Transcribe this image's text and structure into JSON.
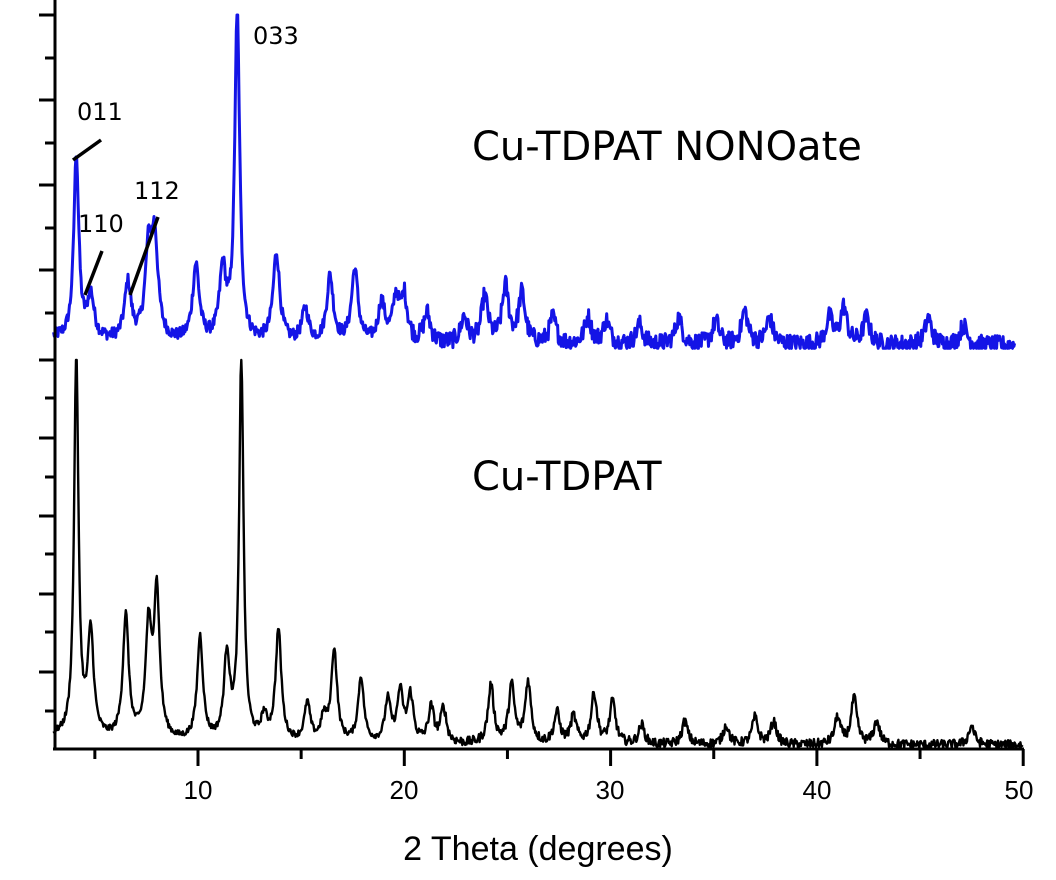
{
  "chart_data": {
    "type": "line",
    "title": "",
    "xlabel": "2 Theta (degrees)",
    "ylabel": "",
    "xlim": [
      3,
      50
    ],
    "x_ticks_major": [
      10,
      20,
      30,
      40,
      50
    ],
    "x_ticks_minor": [
      5,
      15,
      25,
      35,
      45
    ],
    "y_tick_labels": "none",
    "grid": false,
    "legend": "none (inline series labels)",
    "layout": "stacked (offset) powder XRD patterns, shared x-axis",
    "series": [
      {
        "name": "Cu-TDPAT NONOate",
        "color": "#1414e6",
        "position": "upper",
        "peaks": [
          {
            "two_theta": 4.1,
            "rel_intensity": 0.56,
            "hkl": "011"
          },
          {
            "two_theta": 4.8,
            "rel_intensity": 0.13,
            "hkl": "110"
          },
          {
            "two_theta": 6.6,
            "rel_intensity": 0.17,
            "hkl": "112"
          },
          {
            "two_theta": 7.6,
            "rel_intensity": 0.25
          },
          {
            "two_theta": 7.9,
            "rel_intensity": 0.29
          },
          {
            "two_theta": 9.9,
            "rel_intensity": 0.23
          },
          {
            "two_theta": 11.2,
            "rel_intensity": 0.21
          },
          {
            "two_theta": 11.9,
            "rel_intensity": 1.0,
            "hkl": "033"
          },
          {
            "two_theta": 13.8,
            "rel_intensity": 0.27
          },
          {
            "two_theta": 15.2,
            "rel_intensity": 0.1
          },
          {
            "two_theta": 16.4,
            "rel_intensity": 0.2
          },
          {
            "two_theta": 17.6,
            "rel_intensity": 0.22
          },
          {
            "two_theta": 18.9,
            "rel_intensity": 0.12
          },
          {
            "two_theta": 19.6,
            "rel_intensity": 0.13
          },
          {
            "two_theta": 20.0,
            "rel_intensity": 0.13
          },
          {
            "two_theta": 21.1,
            "rel_intensity": 0.09
          },
          {
            "two_theta": 22.9,
            "rel_intensity": 0.08
          },
          {
            "two_theta": 23.9,
            "rel_intensity": 0.14
          },
          {
            "two_theta": 24.9,
            "rel_intensity": 0.17
          },
          {
            "two_theta": 25.7,
            "rel_intensity": 0.15
          },
          {
            "two_theta": 27.2,
            "rel_intensity": 0.08
          },
          {
            "two_theta": 28.9,
            "rel_intensity": 0.08
          },
          {
            "two_theta": 29.8,
            "rel_intensity": 0.07
          },
          {
            "two_theta": 31.4,
            "rel_intensity": 0.06
          },
          {
            "two_theta": 33.3,
            "rel_intensity": 0.08
          },
          {
            "two_theta": 35.1,
            "rel_intensity": 0.07
          },
          {
            "two_theta": 36.5,
            "rel_intensity": 0.1
          },
          {
            "two_theta": 37.7,
            "rel_intensity": 0.08
          },
          {
            "two_theta": 40.6,
            "rel_intensity": 0.08
          },
          {
            "two_theta": 41.3,
            "rel_intensity": 0.11
          },
          {
            "two_theta": 42.4,
            "rel_intensity": 0.08
          },
          {
            "two_theta": 45.4,
            "rel_intensity": 0.08
          },
          {
            "two_theta": 47.1,
            "rel_intensity": 0.06
          }
        ]
      },
      {
        "name": "Cu-TDPAT",
        "color": "#000000",
        "position": "lower",
        "peaks": [
          {
            "two_theta": 4.1,
            "rel_intensity": 1.0
          },
          {
            "two_theta": 4.8,
            "rel_intensity": 0.27
          },
          {
            "two_theta": 6.5,
            "rel_intensity": 0.32
          },
          {
            "two_theta": 7.6,
            "rel_intensity": 0.28
          },
          {
            "two_theta": 8.0,
            "rel_intensity": 0.38
          },
          {
            "two_theta": 10.1,
            "rel_intensity": 0.27
          },
          {
            "two_theta": 11.4,
            "rel_intensity": 0.22
          },
          {
            "two_theta": 12.1,
            "rel_intensity": 1.0
          },
          {
            "two_theta": 13.2,
            "rel_intensity": 0.06
          },
          {
            "two_theta": 13.9,
            "rel_intensity": 0.29
          },
          {
            "two_theta": 15.3,
            "rel_intensity": 0.1
          },
          {
            "two_theta": 16.1,
            "rel_intensity": 0.06
          },
          {
            "two_theta": 16.6,
            "rel_intensity": 0.24
          },
          {
            "two_theta": 17.9,
            "rel_intensity": 0.17
          },
          {
            "two_theta": 19.2,
            "rel_intensity": 0.11
          },
          {
            "two_theta": 19.8,
            "rel_intensity": 0.13
          },
          {
            "two_theta": 20.3,
            "rel_intensity": 0.12
          },
          {
            "two_theta": 21.3,
            "rel_intensity": 0.09
          },
          {
            "two_theta": 21.9,
            "rel_intensity": 0.09
          },
          {
            "two_theta": 24.2,
            "rel_intensity": 0.15
          },
          {
            "two_theta": 25.2,
            "rel_intensity": 0.15
          },
          {
            "two_theta": 26.0,
            "rel_intensity": 0.16
          },
          {
            "two_theta": 27.4,
            "rel_intensity": 0.08
          },
          {
            "two_theta": 28.2,
            "rel_intensity": 0.07
          },
          {
            "two_theta": 29.2,
            "rel_intensity": 0.13
          },
          {
            "two_theta": 30.1,
            "rel_intensity": 0.11
          },
          {
            "two_theta": 31.5,
            "rel_intensity": 0.05
          },
          {
            "two_theta": 33.6,
            "rel_intensity": 0.06
          },
          {
            "two_theta": 35.6,
            "rel_intensity": 0.05
          },
          {
            "two_theta": 37.0,
            "rel_intensity": 0.07
          },
          {
            "two_theta": 37.9,
            "rel_intensity": 0.06
          },
          {
            "two_theta": 41.0,
            "rel_intensity": 0.07
          },
          {
            "two_theta": 41.8,
            "rel_intensity": 0.12
          },
          {
            "two_theta": 42.9,
            "rel_intensity": 0.06
          },
          {
            "two_theta": 47.5,
            "rel_intensity": 0.05
          }
        ]
      }
    ],
    "annotations": [
      {
        "text": "011",
        "series": "Cu-TDPAT NONOate",
        "two_theta": 4.1
      },
      {
        "text": "110",
        "series": "Cu-TDPAT NONOate",
        "two_theta": 4.8
      },
      {
        "text": "112",
        "series": "Cu-TDPAT NONOate",
        "two_theta": 6.6
      },
      {
        "text": "033",
        "series": "Cu-TDPAT NONOate",
        "two_theta": 11.9
      }
    ]
  },
  "labels": {
    "series_upper": "Cu-TDPAT NONOate",
    "series_lower": "Cu-TDPAT",
    "hkl_011": "011",
    "hkl_110": "110",
    "hkl_112": "112",
    "hkl_033": "033",
    "xlabel": "2 Theta (degrees)",
    "xticks": [
      "10",
      "20",
      "30",
      "40",
      "50"
    ]
  }
}
